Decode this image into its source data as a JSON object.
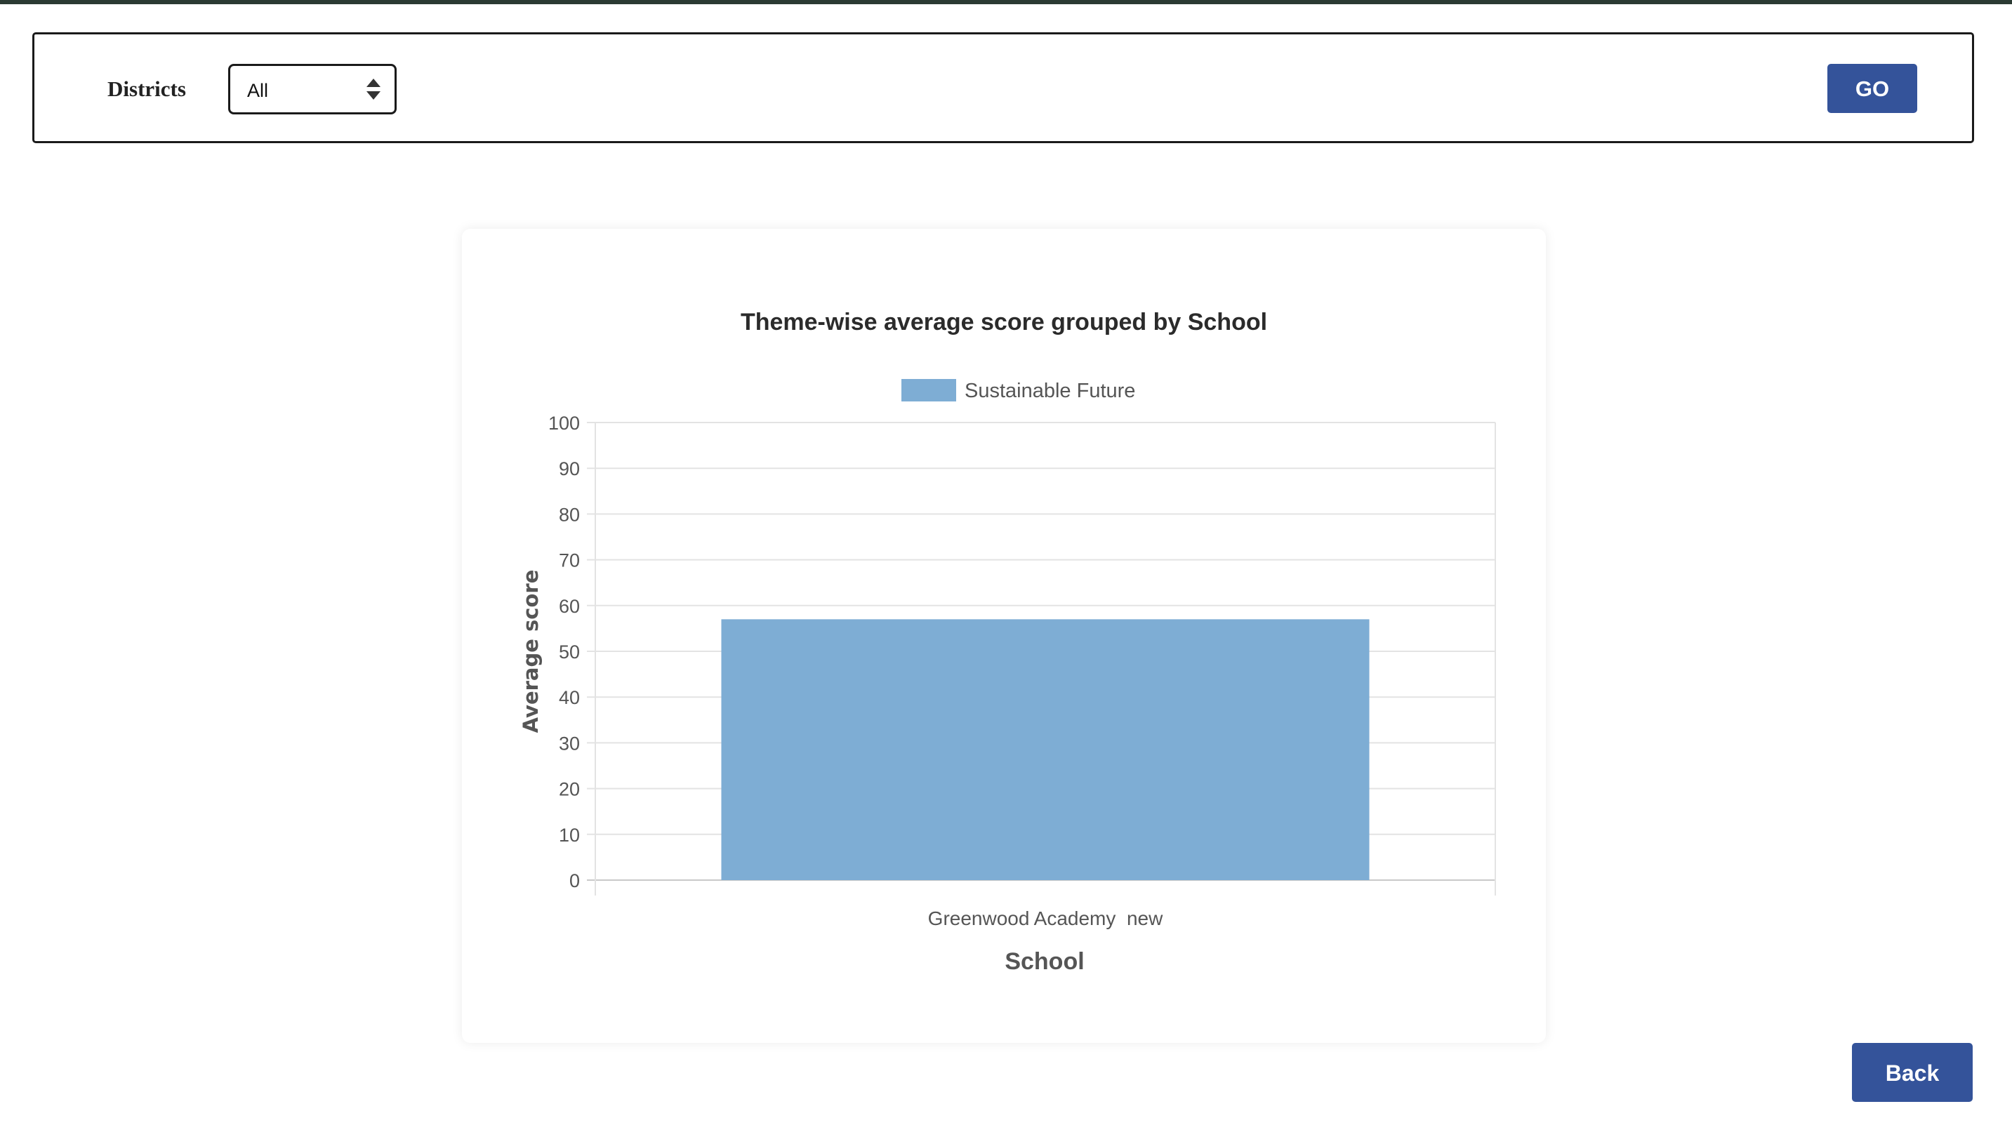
{
  "filters": {
    "districts_label": "Districts",
    "district_select": {
      "selected": "All"
    },
    "go_label": "GO"
  },
  "back_label": "Back",
  "colors": {
    "primary_button": "#34539a",
    "bar": "#7eadd4"
  },
  "chart_data": {
    "type": "bar",
    "title": "Theme-wise average score grouped by School",
    "xlabel": "School",
    "ylabel": "Average score",
    "categories": [
      "Greenwood Academy  new"
    ],
    "series": [
      {
        "name": "Sustainable Future",
        "values": [
          57
        ],
        "color": "#7eadd4"
      }
    ],
    "ylim": [
      0,
      100
    ],
    "yticks": [
      0,
      10,
      20,
      30,
      40,
      50,
      60,
      70,
      80,
      90,
      100
    ],
    "grid": true,
    "legend_position": "top"
  }
}
